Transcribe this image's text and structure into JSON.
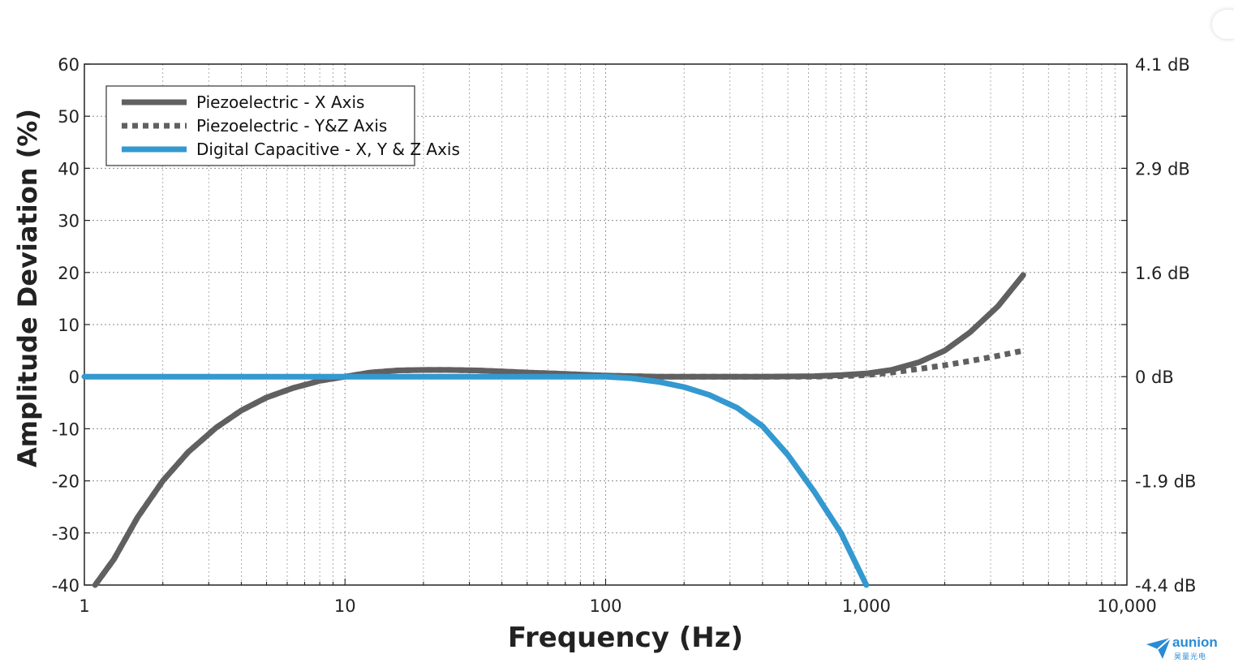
{
  "chart_data": {
    "type": "line",
    "xscale": "log",
    "xlim": [
      1,
      10000
    ],
    "ylim": [
      -40,
      60
    ],
    "xlabel": "Frequency (Hz)",
    "ylabel": "Amplitude Deviation (%)",
    "x_ticks": [
      "1",
      "10",
      "100",
      "1,000",
      "10,000"
    ],
    "x_tick_values": [
      1,
      10,
      100,
      1000,
      10000
    ],
    "y_ticks": [
      "60",
      "50",
      "40",
      "30",
      "20",
      "10",
      "0",
      "-10",
      "-20",
      "-30",
      "-40"
    ],
    "y_tick_values": [
      60,
      50,
      40,
      30,
      20,
      10,
      0,
      -10,
      -20,
      -30,
      -40
    ],
    "y2_ticks": [
      "4.1 dB",
      "2.9 dB",
      "1.6 dB",
      "0 dB",
      "-1.9 dB",
      "-4.4 dB"
    ],
    "y2_tick_positions": [
      60,
      40,
      20,
      0,
      -20,
      -40
    ],
    "grid": true,
    "legend_position": "top-left",
    "series": [
      {
        "name": "Piezoelectric - X Axis",
        "style": "solid",
        "color": "#606060",
        "x": [
          1.1,
          1.3,
          1.6,
          2,
          2.5,
          3.2,
          4,
          5,
          6.3,
          8,
          10,
          12.5,
          16,
          20,
          25,
          32,
          40,
          50,
          63,
          80,
          100,
          160,
          250,
          400,
          630,
          800,
          1000,
          1250,
          1600,
          2000,
          2500,
          3200,
          4000
        ],
        "y": [
          -40,
          -35,
          -27,
          -20,
          -14.5,
          -9.8,
          -6.5,
          -4,
          -2.2,
          -0.8,
          0,
          0.8,
          1.2,
          1.3,
          1.3,
          1.2,
          1.0,
          0.8,
          0.6,
          0.4,
          0.2,
          0,
          0,
          0,
          0.1,
          0.3,
          0.6,
          1.3,
          2.8,
          5,
          8.5,
          13.5,
          19.5
        ]
      },
      {
        "name": "Piezoelectric - Y&Z Axis",
        "style": "dotted",
        "color": "#606060",
        "x": [
          1.1,
          1.3,
          1.6,
          2,
          2.5,
          3.2,
          4,
          5,
          6.3,
          8,
          10,
          12.5,
          16,
          20,
          25,
          32,
          40,
          50,
          63,
          80,
          100,
          160,
          250,
          400,
          630,
          800,
          1000,
          1250,
          1600,
          2000,
          2500,
          3200,
          4000
        ],
        "y": [
          -40,
          -35,
          -27,
          -20,
          -14.5,
          -9.8,
          -6.5,
          -4,
          -2.2,
          -0.8,
          0,
          0.8,
          1.2,
          1.3,
          1.3,
          1.2,
          1.0,
          0.8,
          0.6,
          0.4,
          0.2,
          0,
          0,
          0,
          0,
          0.1,
          0.3,
          0.8,
          1.5,
          2.2,
          3.0,
          4.0,
          5.0
        ]
      },
      {
        "name": "Digital Capacitive - X, Y & Z Axis",
        "style": "solid",
        "color": "#3399d0",
        "x": [
          1,
          10,
          100,
          125,
          160,
          200,
          250,
          320,
          400,
          500,
          630,
          800,
          1000
        ],
        "y": [
          0,
          0,
          0,
          -0.3,
          -1,
          -2,
          -3.5,
          -6,
          -9.5,
          -15,
          -22,
          -30,
          -40
        ]
      }
    ]
  },
  "watermark": {
    "brand": "aunion",
    "sub": "昊量光电",
    "color": "#2a8bd6"
  }
}
